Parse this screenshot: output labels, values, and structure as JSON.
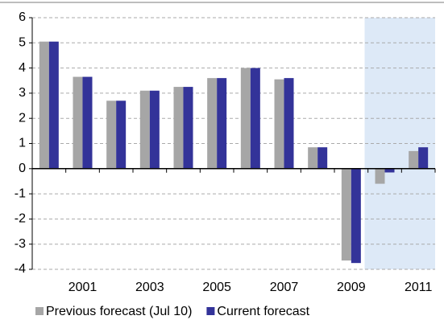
{
  "chart_data": {
    "type": "bar",
    "categories": [
      null,
      "2001",
      null,
      "2003",
      null,
      "2005",
      null,
      "2007",
      null,
      "2009",
      null,
      "2011"
    ],
    "series": [
      {
        "name": "Previous forecast (Jul 10)",
        "color": "#a6a6a6",
        "values": [
          5.05,
          3.65,
          2.7,
          3.1,
          3.25,
          3.6,
          4.0,
          3.55,
          0.85,
          -3.65,
          -0.6,
          0.7
        ]
      },
      {
        "name": "Current forecast",
        "color": "#333399",
        "values": [
          5.05,
          3.65,
          2.7,
          3.1,
          3.25,
          3.6,
          4.0,
          3.6,
          0.85,
          -3.75,
          -0.15,
          0.85
        ]
      }
    ],
    "ylim": [
      -4,
      6
    ],
    "yticks": [
      -4,
      -3,
      -2,
      -1,
      0,
      1,
      2,
      3,
      4,
      5,
      6
    ],
    "grid": true
  }
}
